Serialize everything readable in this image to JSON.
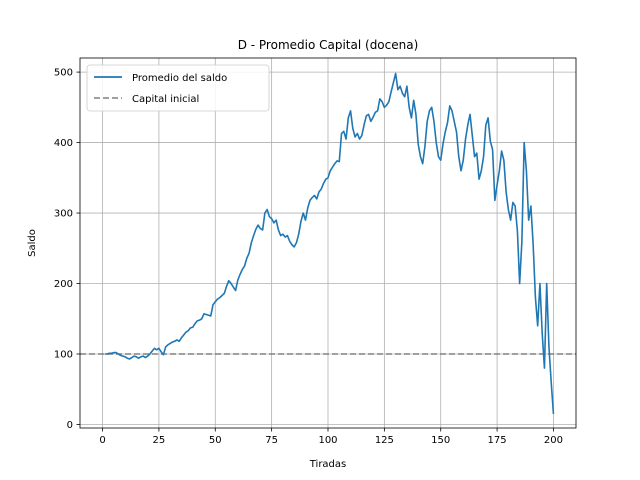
{
  "chart_data": {
    "type": "line",
    "title": "D - Promedio Capital (docena)",
    "xlabel": "Tiradas",
    "ylabel": "Saldo",
    "xlim": [
      -10,
      210
    ],
    "ylim": [
      -5,
      520
    ],
    "xticks": [
      0,
      25,
      50,
      75,
      100,
      125,
      150,
      175,
      200
    ],
    "yticks": [
      0,
      100,
      200,
      300,
      400,
      500
    ],
    "grid": true,
    "legend_position": "top-left",
    "legend": [
      "Promedio del saldo",
      "Capital inicial"
    ],
    "colors": {
      "series": "#1f77b4",
      "baseline": "#808080"
    },
    "baseline": {
      "name": "Capital inicial",
      "y": 100,
      "style": "dashed"
    },
    "series": [
      {
        "name": "Promedio del saldo",
        "x": [
          1,
          2,
          3,
          4,
          5,
          6,
          7,
          8,
          9,
          10,
          11,
          12,
          13,
          14,
          15,
          16,
          17,
          18,
          19,
          20,
          21,
          22,
          23,
          24,
          25,
          26,
          27,
          28,
          29,
          30,
          31,
          32,
          33,
          34,
          35,
          36,
          37,
          38,
          39,
          40,
          41,
          42,
          43,
          44,
          45,
          46,
          47,
          48,
          49,
          50,
          51,
          52,
          53,
          54,
          55,
          56,
          57,
          58,
          59,
          60,
          61,
          62,
          63,
          64,
          65,
          66,
          67,
          68,
          69,
          70,
          71,
          72,
          73,
          74,
          75,
          76,
          77,
          78,
          79,
          80,
          81,
          82,
          83,
          84,
          85,
          86,
          87,
          88,
          89,
          90,
          91,
          92,
          93,
          94,
          95,
          96,
          97,
          98,
          99,
          100,
          101,
          102,
          103,
          104,
          105,
          106,
          107,
          108,
          109,
          110,
          111,
          112,
          113,
          114,
          115,
          116,
          117,
          118,
          119,
          120,
          121,
          122,
          123,
          124,
          125,
          126,
          127,
          128,
          129,
          130,
          131,
          132,
          133,
          134,
          135,
          136,
          137,
          138,
          139,
          140,
          141,
          142,
          143,
          144,
          145,
          146,
          147,
          148,
          149,
          150,
          151,
          152,
          153,
          154,
          155,
          156,
          157,
          158,
          159,
          160,
          161,
          162,
          163,
          164,
          165,
          166,
          167,
          168,
          169,
          170,
          171,
          172,
          173,
          174,
          175,
          176,
          177,
          178,
          179,
          180,
          181,
          182,
          183,
          184,
          185,
          186,
          187,
          188,
          189,
          190,
          191,
          192,
          193,
          194,
          195,
          196,
          197,
          198,
          199,
          200
        ],
        "y": [
          100,
          100,
          101,
          101,
          102,
          102,
          100,
          98,
          97,
          96,
          94,
          93,
          95,
          97,
          96,
          94,
          96,
          97,
          95,
          97,
          100,
          104,
          108,
          106,
          108,
          103,
          99,
          110,
          113,
          115,
          117,
          118,
          120,
          118,
          123,
          127,
          131,
          133,
          137,
          138,
          143,
          147,
          148,
          150,
          157,
          156,
          155,
          154,
          170,
          174,
          178,
          180,
          183,
          186,
          196,
          204,
          200,
          195,
          190,
          205,
          213,
          220,
          225,
          236,
          243,
          258,
          268,
          277,
          283,
          278,
          276,
          300,
          305,
          295,
          292,
          286,
          290,
          276,
          268,
          270,
          266,
          268,
          260,
          255,
          252,
          258,
          270,
          288,
          300,
          290,
          307,
          318,
          322,
          325,
          320,
          330,
          334,
          342,
          348,
          350,
          360,
          365,
          370,
          374,
          373,
          413,
          416,
          405,
          435,
          445,
          420,
          408,
          413,
          405,
          410,
          425,
          438,
          440,
          430,
          436,
          443,
          445,
          462,
          458,
          450,
          453,
          458,
          472,
          485,
          498,
          475,
          480,
          470,
          465,
          480,
          450,
          435,
          460,
          440,
          398,
          380,
          370,
          395,
          430,
          445,
          450,
          430,
          400,
          380,
          375,
          398,
          415,
          428,
          452,
          445,
          430,
          415,
          380,
          360,
          375,
          405,
          425,
          440,
          410,
          380,
          385,
          348,
          360,
          380,
          425,
          435,
          402,
          390,
          318,
          340,
          360,
          388,
          375,
          330,
          305,
          290,
          315,
          310,
          275,
          200,
          260,
          400,
          360,
          290,
          310,
          255,
          180,
          140,
          200,
          130,
          80,
          200,
          110,
          60,
          15
        ]
      }
    ]
  }
}
